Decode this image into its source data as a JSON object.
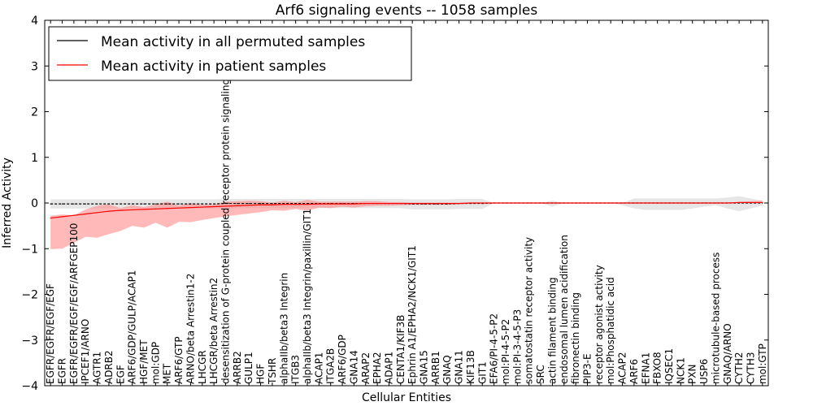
{
  "chart_data": {
    "type": "line",
    "title": "Arf6 signaling events -- 1058 samples",
    "xlabel": "Cellular Entities",
    "ylabel": "Inferred Activity",
    "ylim": [
      -4,
      4
    ],
    "yticks": [
      -4,
      -3,
      -2,
      -1,
      0,
      1,
      2,
      3,
      4
    ],
    "legend_position": "top-left",
    "colors": {
      "permuted_line": "#000000",
      "permuted_band": "#c8c8c8",
      "patient_line": "#ff0000",
      "patient_band": "#ff8080"
    },
    "categories": [
      "EGFR/EGFR/EGF/EGF",
      "EGFR",
      "EGFR/EGFR/EGF/EGF/ARFGEP100",
      "IPCEF1/ARNO",
      "AGTR1",
      "ADRB2",
      "EGF",
      "ARF6/GDP/GULP/ACAP1",
      "HGF/MET",
      "mol:GDP",
      "MET",
      "ARF6/GTP",
      "ARNO/beta Arrestin1-2",
      "LHCGR",
      "LHCGR/beta Arrestin2",
      "desensitization of G-protein coupled receptor protein signaling pathway",
      "ARRB2",
      "GULP1",
      "HGF",
      "TSHR",
      "alphaIIb/beta3 Integrin",
      "ITGB3",
      "alphaIIb/beta3 Integrin/paxillin/GIT1",
      "ACAP1",
      "ITGA2B",
      "ARF6/GDP",
      "GNA14",
      "ARAP2",
      "EPHA2",
      "ADAP1",
      "CENTA1/KIF3B",
      "Ephrin A1/EPHA2/NCK1/GIT1",
      "GNA15",
      "ARRB1",
      "GNAQ",
      "GNA11",
      "KIF13B",
      "GIT1",
      "EFA6/PI-4-5-P2",
      "mol:PI-4-5-P2",
      "mol:PI-3-4-5-P3",
      "somatostatin receptor activity",
      "SRC",
      "actin filament binding",
      "endosomal lumen acidification",
      "fibronectin binding",
      "PIP3-E",
      "receptor agonist activity",
      "mol:Phosphatidic acid",
      "ACAP2",
      "ARF6",
      "EFNA1",
      "FBXO8",
      "IQSEC1",
      "NCK1",
      "PXN",
      "USP6",
      "microtubule-based process",
      "GNAQ/ARNO",
      "CYTH2",
      "CYTH3",
      "mol:GTP"
    ],
    "series": [
      {
        "name": "Mean activity in all permuted samples",
        "color": "#000000",
        "values": [
          -0.02,
          -0.02,
          -0.02,
          -0.02,
          -0.02,
          -0.02,
          -0.02,
          -0.02,
          -0.02,
          -0.02,
          -0.02,
          -0.02,
          -0.02,
          -0.02,
          -0.02,
          -0.01,
          -0.01,
          -0.01,
          -0.01,
          -0.01,
          -0.01,
          -0.01,
          -0.01,
          -0.01,
          -0.01,
          -0.01,
          -0.01,
          -0.01,
          -0.01,
          -0.01,
          -0.01,
          -0.02,
          -0.02,
          -0.02,
          -0.02,
          -0.01,
          -0.01,
          -0.01,
          0,
          0,
          0,
          0,
          0,
          0,
          0,
          0,
          0,
          0,
          0,
          0,
          0,
          0,
          0,
          0,
          0,
          0,
          0,
          0,
          0,
          0,
          0,
          0
        ],
        "band_upper": [
          0.1,
          0.1,
          0.1,
          0.1,
          0.1,
          0.1,
          0.1,
          0.1,
          0.1,
          0.1,
          0.1,
          0.1,
          0.1,
          0.1,
          0.1,
          0.1,
          0.1,
          0.1,
          0.1,
          0.1,
          0.1,
          0.1,
          0.1,
          0.1,
          0.1,
          0.1,
          0.1,
          0.1,
          0.1,
          0.1,
          0.1,
          0.1,
          0.1,
          0.1,
          0.1,
          0.1,
          0.1,
          0.1,
          0,
          0,
          0,
          0,
          0,
          0.05,
          0,
          0,
          0,
          0,
          0,
          0,
          0.1,
          0.1,
          0.1,
          0.1,
          0.1,
          0.1,
          0.1,
          0.1,
          0.12,
          0.15,
          0.1,
          0.05
        ],
        "band_lower": [
          -0.1,
          -0.1,
          -0.1,
          -0.1,
          -0.1,
          -0.1,
          -0.1,
          -0.1,
          -0.1,
          -0.1,
          -0.1,
          -0.1,
          -0.1,
          -0.1,
          -0.1,
          -0.1,
          -0.1,
          -0.1,
          -0.1,
          -0.1,
          -0.1,
          -0.1,
          -0.1,
          -0.1,
          -0.1,
          -0.1,
          -0.1,
          -0.1,
          -0.1,
          -0.1,
          -0.1,
          -0.12,
          -0.12,
          -0.12,
          -0.12,
          -0.12,
          -0.12,
          -0.12,
          0,
          0,
          0,
          0,
          0,
          -0.08,
          0,
          0,
          0,
          0,
          0,
          -0.05,
          -0.12,
          -0.15,
          -0.15,
          -0.15,
          -0.15,
          -0.12,
          -0.08,
          -0.05,
          -0.12,
          -0.18,
          -0.12,
          -0.05
        ]
      },
      {
        "name": "Mean activity in patient samples",
        "color": "#ff0000",
        "values": [
          -0.33,
          -0.3,
          -0.27,
          -0.24,
          -0.21,
          -0.18,
          -0.16,
          -0.15,
          -0.14,
          -0.13,
          -0.12,
          -0.11,
          -0.1,
          -0.09,
          -0.08,
          -0.07,
          -0.06,
          -0.05,
          -0.04,
          -0.04,
          -0.03,
          -0.03,
          -0.03,
          -0.02,
          -0.02,
          -0.02,
          -0.02,
          -0.01,
          -0.01,
          -0.01,
          -0.01,
          -0.01,
          -0.01,
          -0.01,
          -0.01,
          -0.01,
          0,
          0,
          0,
          0,
          0,
          0,
          0,
          0,
          0,
          0,
          0,
          0,
          0,
          0,
          0,
          0,
          0,
          0,
          0,
          0,
          0,
          0,
          0,
          0.01,
          0.01,
          0.01
        ],
        "band_upper": [
          0.05,
          0.05,
          0,
          0.1,
          0.15,
          0.15,
          0.05,
          0.1,
          0.05,
          0.1,
          0.15,
          0.05,
          0.1,
          0.05,
          0.05,
          0.1,
          0.1,
          0.1,
          0.08,
          0.05,
          0.08,
          0.05,
          0.1,
          0.05,
          0.05,
          0.05,
          0.05,
          0.05,
          0.05,
          0.03,
          0.03,
          0.02,
          0.02,
          0.02,
          0.02,
          0.02,
          0.01,
          0.01,
          0,
          0,
          0,
          0,
          0,
          0,
          0,
          0,
          0,
          0,
          0,
          0,
          0,
          0,
          0,
          0,
          0,
          0,
          0,
          0,
          0,
          0.02,
          0.03,
          0.04
        ],
        "band_lower": [
          -0.68,
          -0.7,
          -0.6,
          -0.5,
          -0.55,
          -0.5,
          -0.45,
          -0.35,
          -0.4,
          -0.3,
          -0.42,
          -0.3,
          -0.32,
          -0.28,
          -0.25,
          -0.22,
          -0.2,
          -0.18,
          -0.16,
          -0.12,
          -0.14,
          -0.1,
          -0.14,
          -0.08,
          -0.09,
          -0.06,
          -0.08,
          -0.06,
          -0.05,
          -0.05,
          -0.04,
          -0.03,
          -0.03,
          -0.03,
          -0.03,
          -0.02,
          -0.01,
          -0.01,
          0,
          0,
          0,
          0,
          0,
          0,
          0,
          0,
          0,
          0,
          0,
          0,
          0,
          0,
          0,
          0,
          0,
          0,
          0,
          0,
          0,
          -0.01,
          -0.01,
          -0.01
        ]
      }
    ]
  }
}
